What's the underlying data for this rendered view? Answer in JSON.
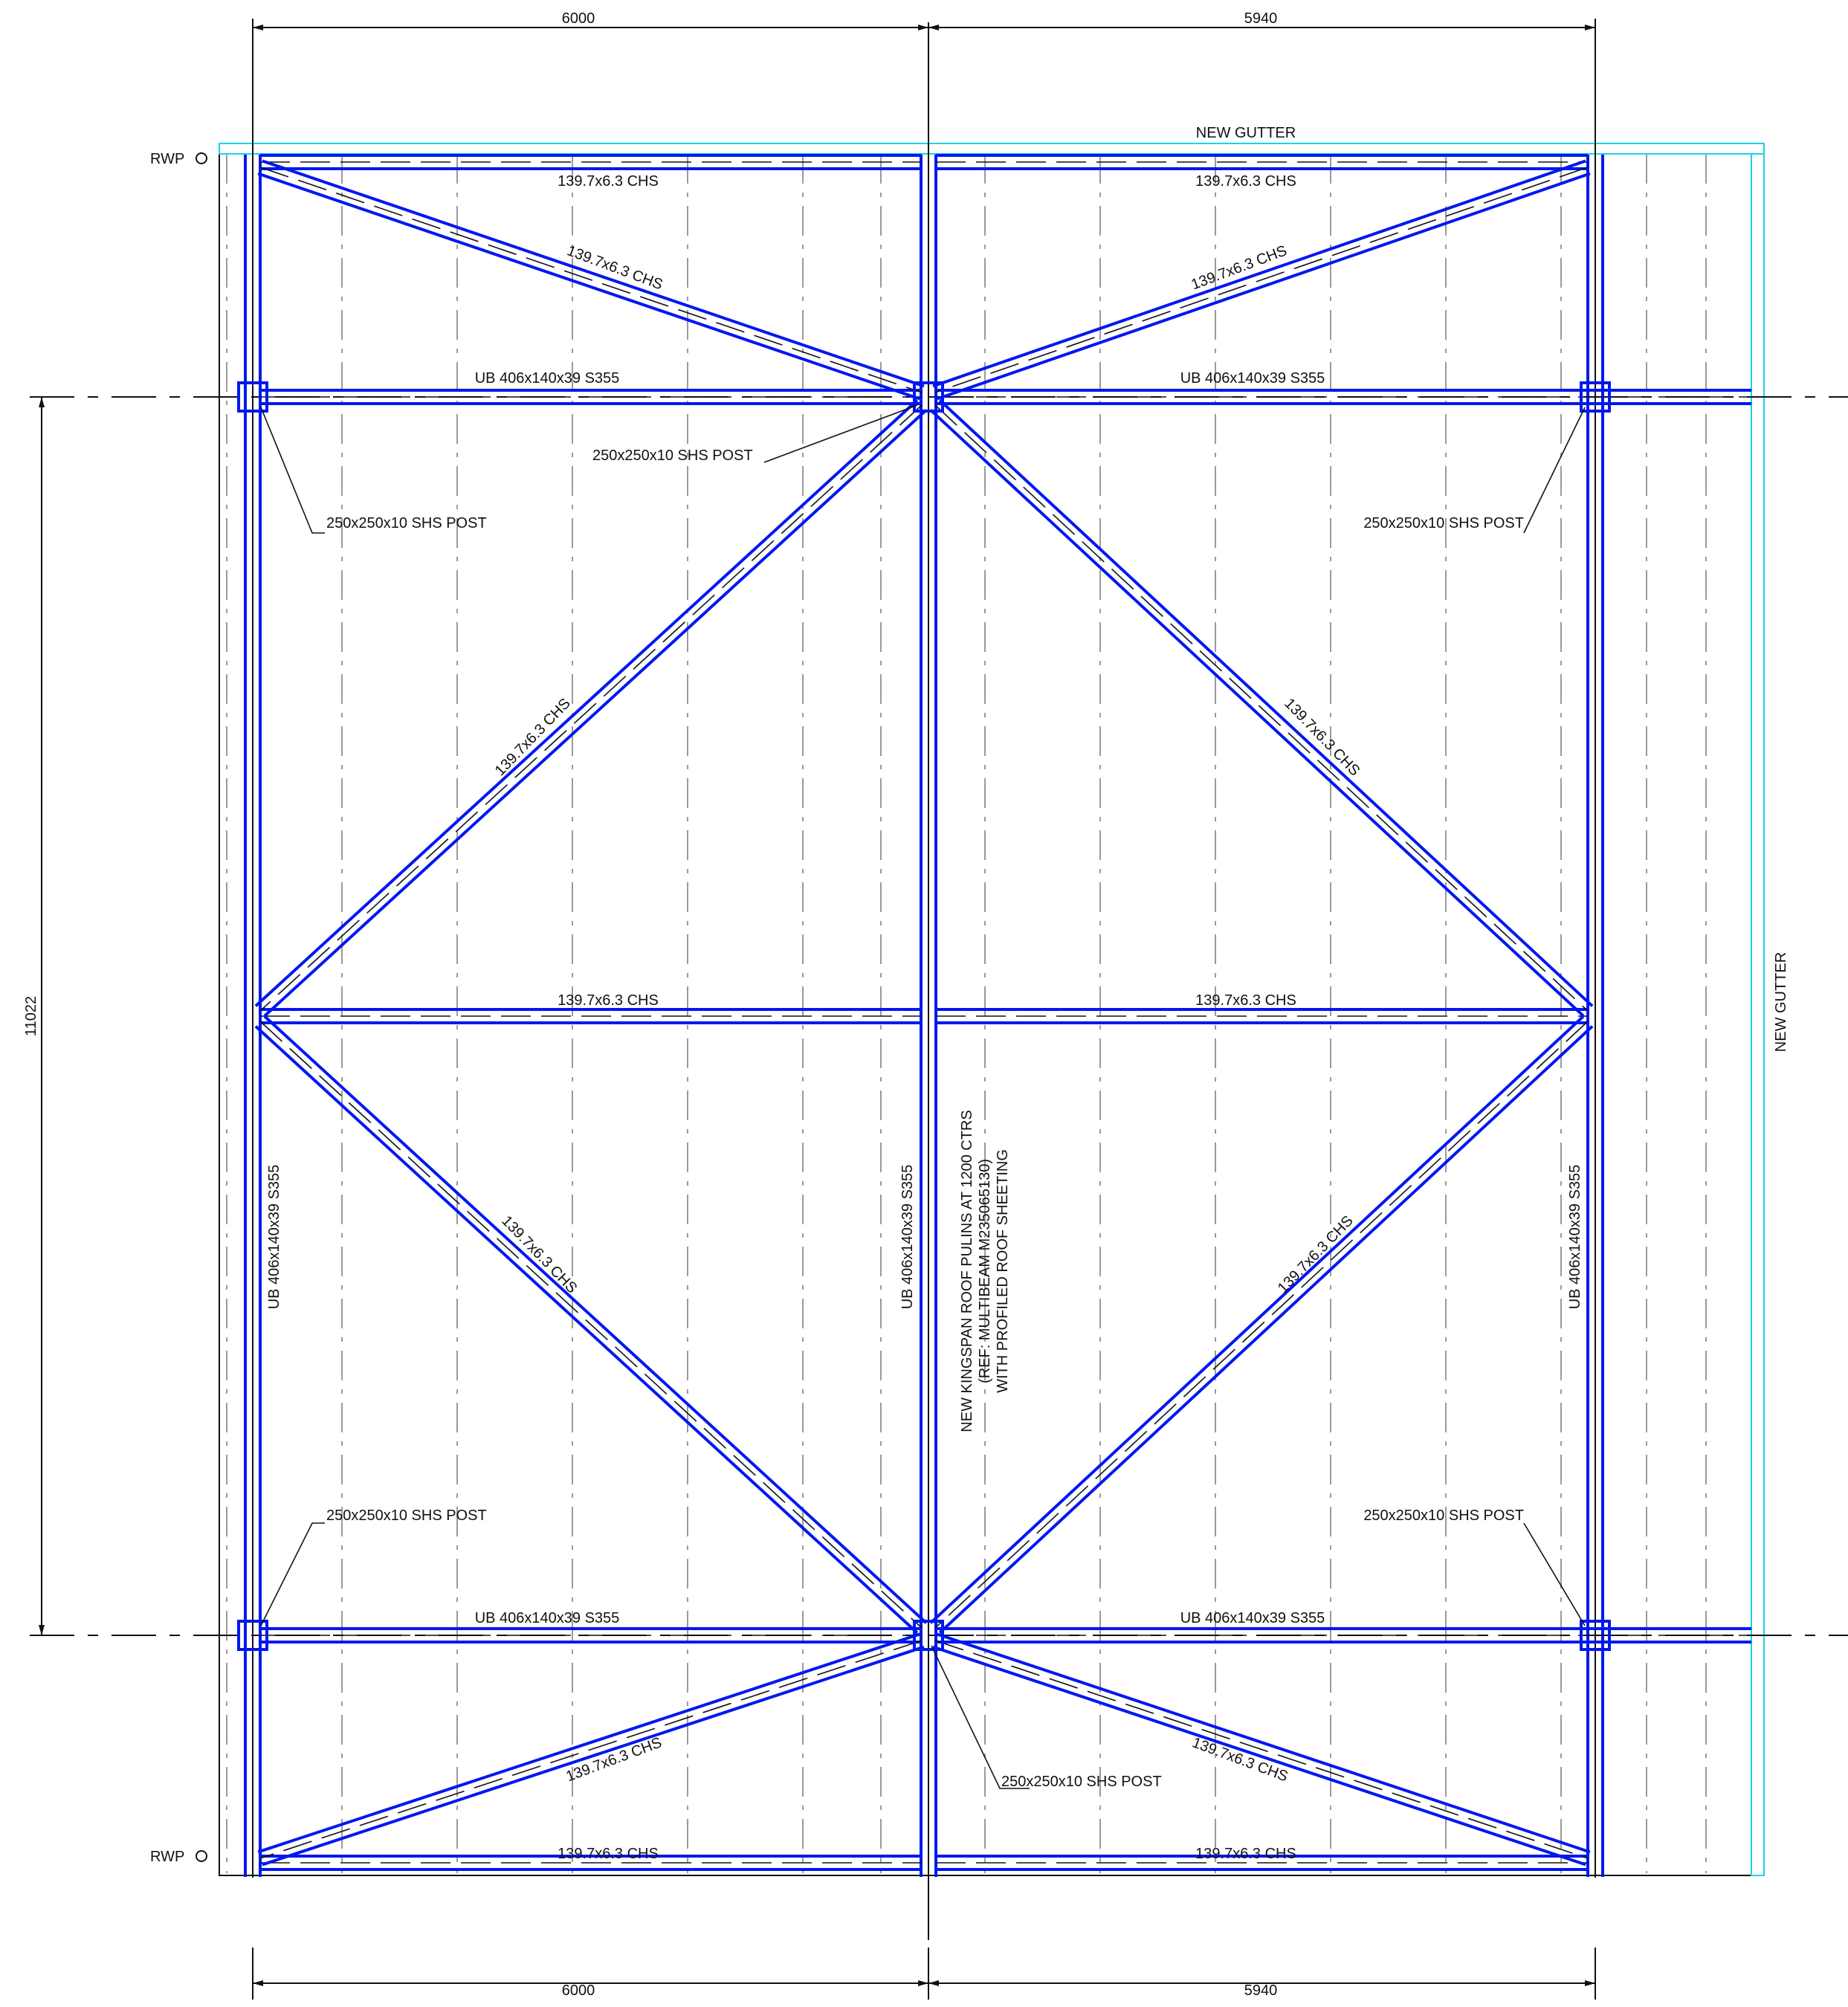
{
  "colors": {
    "steel": "#0018f0",
    "centre": "#111111",
    "gutter": "#19d3e6",
    "background": "#ffffff"
  },
  "dimensions": {
    "top_left": "6000",
    "top_right": "5940",
    "bottom_left": "6000",
    "bottom_right": "5940",
    "left_vertical": "11022"
  },
  "labels": {
    "new_gutter_top": "NEW GUTTER",
    "new_gutter_right": "NEW GUTTER",
    "rwp_top": "RWP",
    "rwp_bottom": "RWP",
    "chs_top_left": "139.7x6.3 CHS",
    "chs_top_right": "139.7x6.3 CHS",
    "chs_diag_top_left": "139.7x6.3 CHS",
    "chs_diag_top_right": "139.7x6.3 CHS",
    "ub_top_left": "UB 406x140x39 S355",
    "ub_top_right": "UB 406x140x39 S355",
    "post_top_centre": "250x250x10 SHS POST",
    "post_top_left": "250x250x10 SHS POST",
    "post_top_right": "250x250x10 SHS POST",
    "chs_diag_mid_upper_left": "139.7x6.3 CHS",
    "chs_diag_mid_upper_right": "139.7x6.3 CHS",
    "chs_mid_left": "139.7x6.3 CHS",
    "chs_mid_right": "139.7x6.3 CHS",
    "chs_diag_mid_lower_left": "139.7x6.3 CHS",
    "chs_diag_mid_lower_right": "139.7x6.3 CHS",
    "ub_left_vertical": "UB 406x140x39 S355",
    "ub_centre_vertical": "UB 406x140x39 S355",
    "ub_right_vertical": "UB 406x140x39 S355",
    "note_line1": "NEW KINGSPAN ROOF PULINS AT 1200 CTRS",
    "note_line2": "(REF: MULTIBEAM M235065130)",
    "note_line3": "WITH PROFILED ROOF SHEETING",
    "post_bottom_left": "250x250x10 SHS POST",
    "post_bottom_right": "250x250x10 SHS POST",
    "ub_bottom_left": "UB 406x140x39 S355",
    "ub_bottom_right": "UB 406x140x39 S355",
    "chs_diag_bottom_left": "139.7x6.3 CHS",
    "chs_diag_bottom_right": "139.7x6.3 CHS",
    "post_bottom_centre": "250x250x10 SHS POST",
    "chs_bottom_left": "139.7x6.3 CHS",
    "chs_bottom_right": "139.7x6.3 CHS"
  }
}
